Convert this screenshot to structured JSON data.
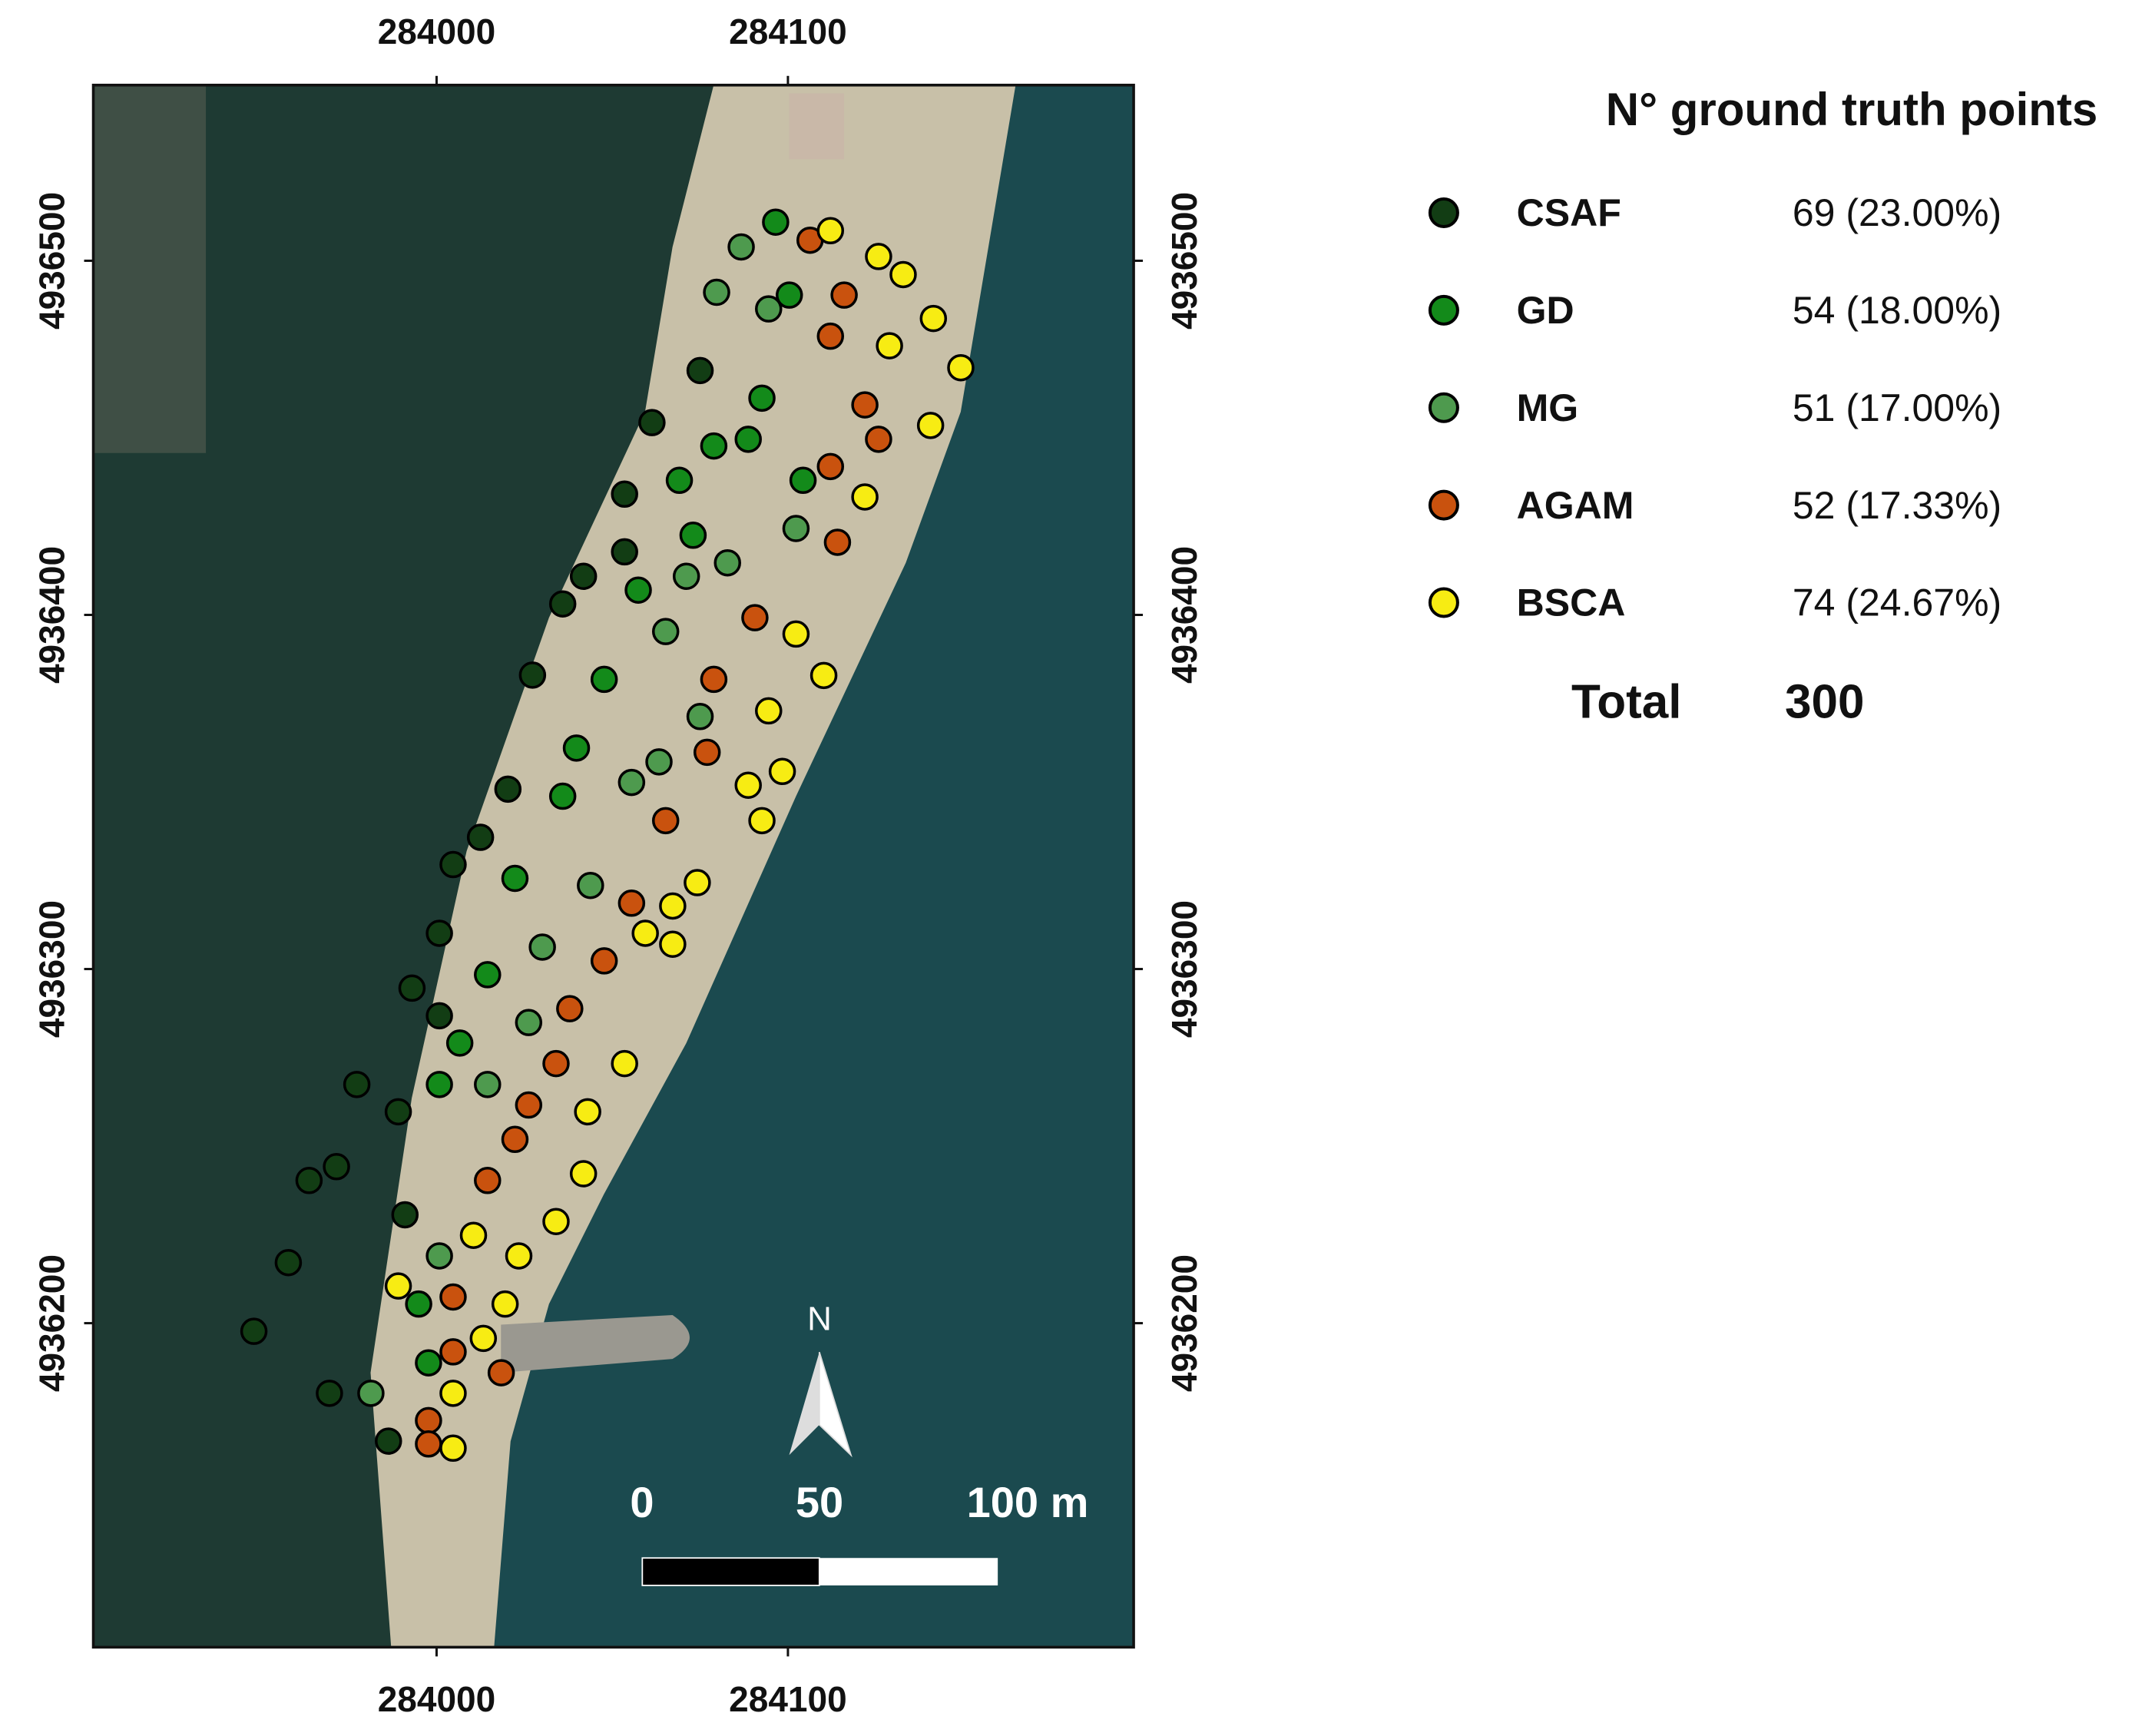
{
  "chart_data": {
    "type": "scatter",
    "xlim": [
      283902.3,
      284198.4
    ],
    "ylim": [
      4936108.5,
      4936549.6
    ],
    "xticks": [
      284000,
      284100
    ],
    "yticks": [
      4936200,
      4936300,
      4936400,
      4936500
    ],
    "legend_title": "N° ground truth points",
    "legend": "right",
    "series": [
      {
        "name": "CSAF",
        "color": "#123d14",
        "count": 69,
        "count_label": "69 (23.00%)",
        "x": [
          284075.0,
          284061.3,
          284053.5,
          284053.5,
          284041.8,
          284035.9,
          284027.3,
          284020.3,
          284012.5,
          284004.7,
          284000.8,
          283993.0,
          283989.1,
          283977.3,
          283963.7,
          283971.5,
          283957.8,
          283948.0,
          283969.5,
          283986.3,
          283991.0,
          284000.8
        ],
        "values": [
          4936469.0,
          4936454.3,
          4936434.1,
          4936417.8,
          4936410.9,
          4936403.1,
          4936383.0,
          4936350.8,
          4936337.2,
          4936329.5,
          4936310.1,
          4936294.6,
          4936259.7,
          4936267.4,
          4936240.3,
          4936244.2,
          4936217.1,
          4936197.7,
          4936180.2,
          4936166.7,
          4936230.6,
          4936286.8
        ]
      },
      {
        "name": "GD",
        "color": "#138a1a",
        "count": 54,
        "count_label": "54 (18.00%)",
        "x": [
          284096.5,
          284100.4,
          284092.6,
          284078.9,
          284069.1,
          284073.0,
          284057.4,
          284047.7,
          284039.8,
          284035.9,
          284022.3,
          284014.5,
          284006.6,
          284000.8,
          283994.9,
          283997.7,
          284088.7,
          284104.3
        ],
        "values": [
          4936510.9,
          4936490.3,
          4936461.2,
          4936447.7,
          4936438.0,
          4936422.5,
          4936407.0,
          4936381.8,
          4936362.4,
          4936348.8,
          4936325.6,
          4936298.4,
          4936279.1,
          4936267.4,
          4936205.4,
          4936188.8,
          4936449.6,
          4936438.0
        ]
      },
      {
        "name": "MG",
        "color": "#4e9a4e",
        "count": 51,
        "count_label": "51 (17.00%)",
        "x": [
          284086.7,
          284079.7,
          284094.5,
          284102.3,
          284082.8,
          284071.1,
          284065.2,
          284075.0,
          284055.5,
          284043.8,
          284030.1,
          284026.2,
          284014.5,
          284000.8,
          283981.3,
          284063.3
        ],
        "values": [
          4936503.9,
          4936491.1,
          4936486.4,
          4936424.4,
          4936414.7,
          4936410.9,
          4936395.3,
          4936371.3,
          4936352.7,
          4936323.6,
          4936306.2,
          4936284.9,
          4936267.4,
          4936219.0,
          4936180.2,
          4936358.5
        ]
      },
      {
        "name": "AGAM",
        "color": "#c9520e",
        "count": 52,
        "count_label": "52 (17.33%)",
        "x": [
          284106.3,
          284116.0,
          284112.1,
          284121.9,
          284125.8,
          284112.1,
          284114.1,
          284090.6,
          284078.9,
          284077.0,
          284065.2,
          284055.5,
          284047.7,
          284037.9,
          284034.0,
          284026.2,
          284022.3,
          284014.5,
          284004.7,
          284004.7,
          283997.7,
          283997.7,
          284018.4
        ],
        "values": [
          4936505.8,
          4936490.3,
          4936478.7,
          4936459.3,
          4936449.6,
          4936441.9,
          4936420.5,
          4936399.2,
          4936381.8,
          4936361.2,
          4936341.9,
          4936318.6,
          4936302.3,
          4936288.8,
          4936273.3,
          4936261.6,
          4936251.9,
          4936240.3,
          4936207.4,
          4936191.9,
          4936172.5,
          4936165.9,
          4936186.0
        ]
      },
      {
        "name": "BSCA",
        "color": "#f7ec13",
        "count": 74,
        "count_label": "74 (24.67%)",
        "x": [
          284112.1,
          284125.8,
          284132.8,
          284141.4,
          284149.2,
          284128.9,
          284140.6,
          284121.9,
          284110.2,
          284102.3,
          284094.5,
          284098.4,
          284088.7,
          284092.6,
          284074.2,
          284067.2,
          284067.2,
          284059.4,
          284053.5,
          284043.0,
          284041.8,
          284034.0,
          284023.4,
          284019.5,
          284010.5,
          284013.3,
          284004.7,
          284004.7,
          283989.1
        ],
        "values": [
          4936508.5,
          4936501.2,
          4936496.1,
          4936483.7,
          4936469.8,
          4936476.0,
          4936453.5,
          4936433.3,
          4936382.9,
          4936394.6,
          4936372.9,
          4936355.8,
          4936351.9,
          4936341.9,
          4936324.4,
          4936317.8,
          4936307.0,
          4936310.1,
          4936273.3,
          4936259.7,
          4936242.2,
          4936228.7,
          4936219.0,
          4936205.4,
          4936224.8,
          4936195.7,
          4936180.2,
          4936164.7,
          4936210.5
        ]
      }
    ],
    "total_label": "Total",
    "total": 300,
    "north_label": "N",
    "scale_bar_labels": [
      "0",
      "50",
      "100 m"
    ]
  }
}
